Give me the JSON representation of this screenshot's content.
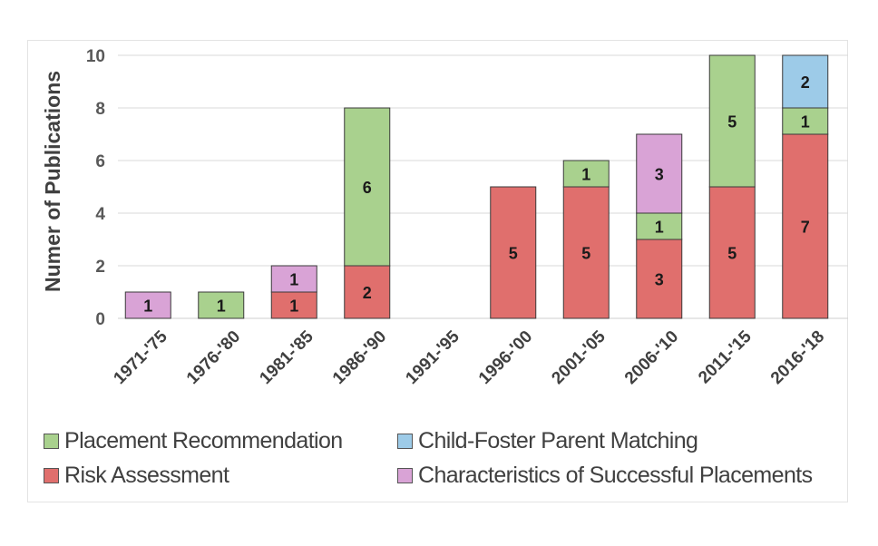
{
  "chart_data": {
    "type": "bar",
    "stacked": true,
    "categories": [
      "1971-'75",
      "1976-'80",
      "1981-'85",
      "1986-'90",
      "1991-'95",
      "1996-'00",
      "2001-'05",
      "2006-'10",
      "2011-'15",
      "2016-'18"
    ],
    "series": [
      {
        "name": "Risk Assessment",
        "color": "#e06f6d",
        "values": [
          0,
          0,
          1,
          2,
          0,
          5,
          5,
          3,
          5,
          7
        ]
      },
      {
        "name": "Placement Recommendation",
        "color": "#a9d18e",
        "values": [
          0,
          1,
          0,
          6,
          0,
          0,
          1,
          1,
          5,
          1
        ]
      },
      {
        "name": "Characteristics of Successful Placements",
        "color": "#d9a3d6",
        "values": [
          1,
          0,
          1,
          0,
          0,
          0,
          0,
          3,
          0,
          0
        ]
      },
      {
        "name": "Child-Foster Parent Matching",
        "color": "#9dcbe8",
        "values": [
          0,
          0,
          0,
          0,
          0,
          0,
          0,
          0,
          0,
          2
        ]
      }
    ],
    "ylabel": "Numer of Publications",
    "xlabel": "",
    "ylim": [
      0,
      10
    ],
    "yticks": [
      0,
      2,
      4,
      6,
      8,
      10
    ],
    "grid": true,
    "legend_position": "bottom",
    "legend_order": [
      "Placement Recommendation",
      "Child-Foster Parent Matching",
      "Risk Assessment",
      "Characteristics of Successful Placements"
    ]
  }
}
